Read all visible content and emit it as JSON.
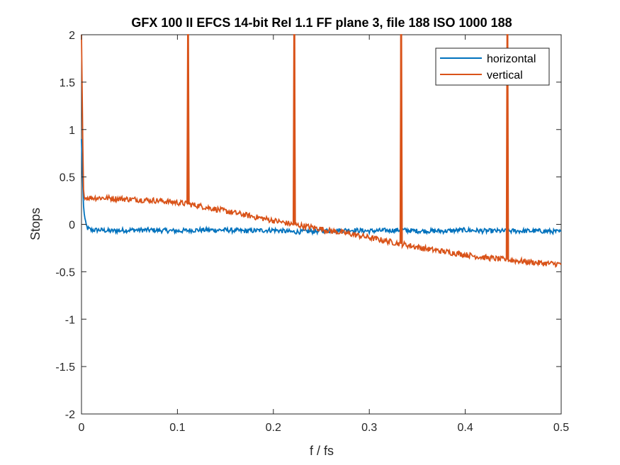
{
  "chart_data": {
    "type": "line",
    "title": "GFX 100 II EFCS 14-bit Rel 1.1 FF plane 3, file 188 ISO 1000 188",
    "xlabel": "f / fs",
    "ylabel": "Stops",
    "xlim": [
      0,
      0.5
    ],
    "ylim": [
      -2,
      2
    ],
    "x_ticks": [
      "0",
      "0.1",
      "0.2",
      "0.3",
      "0.4",
      "0.5"
    ],
    "y_ticks": [
      "-2",
      "-1.5",
      "-1",
      "-0.5",
      "0",
      "0.5",
      "1",
      "1.5",
      "2"
    ],
    "x_tick_values": [
      0,
      0.1,
      0.2,
      0.3,
      0.4,
      0.5
    ],
    "y_tick_values": [
      -2,
      -1.5,
      -1,
      -0.5,
      0,
      0.5,
      1,
      1.5,
      2
    ],
    "grid": false,
    "legend_position": "top-right",
    "series": [
      {
        "name": "horizontal",
        "color": "#0072BD",
        "x": [
          0,
          0.002,
          0.004,
          0.006,
          0.01,
          0.02,
          0.03,
          0.05,
          0.07,
          0.1,
          0.12,
          0.15,
          0.17,
          0.2,
          0.22,
          0.25,
          0.28,
          0.3,
          0.333,
          0.35,
          0.38,
          0.4,
          0.42,
          0.444,
          0.46,
          0.48,
          0.5
        ],
        "y": [
          0.9,
          0.2,
          0.02,
          -0.04,
          -0.06,
          -0.06,
          -0.07,
          -0.06,
          -0.06,
          -0.07,
          -0.06,
          -0.06,
          -0.07,
          -0.06,
          -0.08,
          -0.07,
          -0.06,
          -0.07,
          -0.06,
          -0.07,
          -0.07,
          -0.06,
          -0.07,
          -0.07,
          -0.07,
          -0.07,
          -0.08
        ],
        "noise": 0.025
      },
      {
        "name": "vertical",
        "color": "#D95319",
        "x": [
          0,
          0.002,
          0.004,
          0.01,
          0.02,
          0.04,
          0.06,
          0.08,
          0.1,
          0.12,
          0.14,
          0.16,
          0.18,
          0.2,
          0.22,
          0.24,
          0.26,
          0.28,
          0.3,
          0.32,
          0.34,
          0.36,
          0.38,
          0.4,
          0.42,
          0.44,
          0.46,
          0.48,
          0.5
        ],
        "y": [
          2,
          0.35,
          0.28,
          0.28,
          0.28,
          0.27,
          0.26,
          0.25,
          0.23,
          0.2,
          0.16,
          0.12,
          0.08,
          0.04,
          0.0,
          -0.03,
          -0.07,
          -0.1,
          -0.14,
          -0.18,
          -0.22,
          -0.26,
          -0.29,
          -0.32,
          -0.35,
          -0.37,
          -0.39,
          -0.41,
          -0.42
        ],
        "noise": 0.03,
        "spikes": [
          0.111,
          0.222,
          0.333,
          0.444
        ]
      }
    ]
  },
  "colors": {
    "axes": "#262626",
    "background": "#ffffff"
  }
}
